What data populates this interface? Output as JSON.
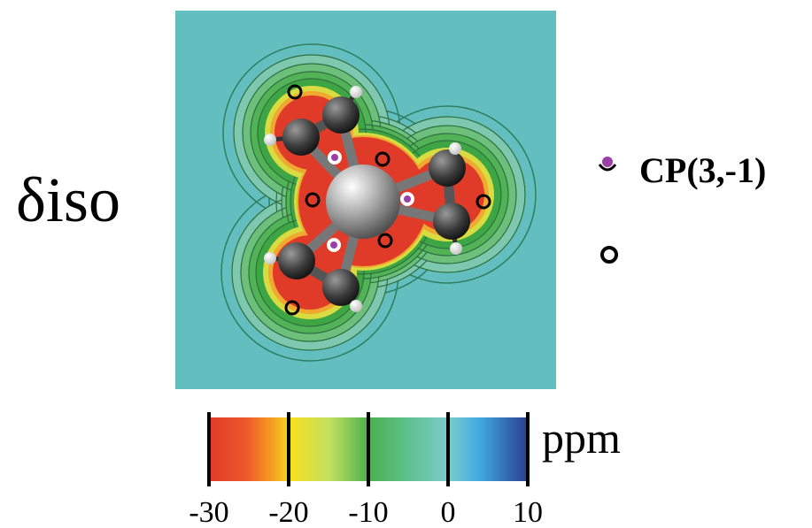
{
  "figure": {
    "quantity_label": "δiso",
    "legend": [
      {
        "label": "CP(3,-1)"
      }
    ],
    "colorbar": {
      "unit": "ppm",
      "lim": [
        -30,
        10
      ],
      "ticks": [
        -30,
        -20,
        -10,
        0,
        10
      ]
    }
  }
}
